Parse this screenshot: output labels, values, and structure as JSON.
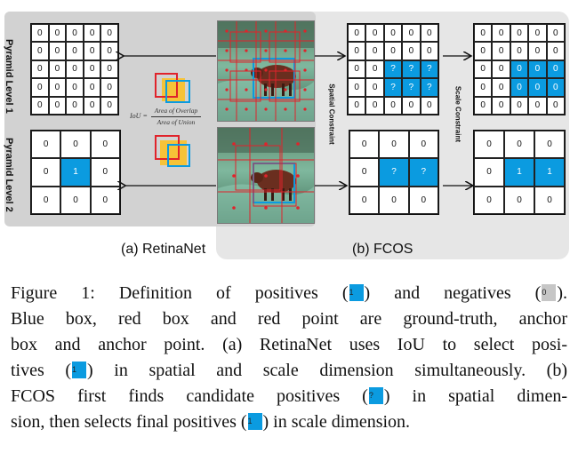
{
  "left_panel": {
    "pyramid_level_1_label": "Pyramid Level 1",
    "pyramid_level_2_label": "Pyramid Level 2",
    "subfigure_label": "(a) RetinaNet",
    "iou_prefix": "IoU =",
    "iou_numerator": "Area of Overlap",
    "iou_denominator": "Area of Union",
    "level1_grid": [
      [
        "0",
        "0",
        "0",
        "0",
        "0"
      ],
      [
        "0",
        "0",
        "0",
        "0",
        "0"
      ],
      [
        "0",
        "0",
        "0",
        "0",
        "0"
      ],
      [
        "0",
        "0",
        "0",
        "0",
        "0"
      ],
      [
        "0",
        "0",
        "0",
        "0",
        "0"
      ]
    ],
    "level2_grid": [
      [
        "0",
        "0",
        "0"
      ],
      [
        "0",
        "1",
        "0"
      ],
      [
        "0",
        "0",
        "0"
      ]
    ]
  },
  "right_panel": {
    "subfigure_label": "(b) FCOS",
    "spatial_constraint_label": "Spatial Constraint",
    "scale_constraint_label": "Scale Constraint",
    "spatial_level1_grid": [
      [
        "0",
        "0",
        "0",
        "0",
        "0"
      ],
      [
        "0",
        "0",
        "0",
        "0",
        "0"
      ],
      [
        "0",
        "0",
        "?",
        "?",
        "?"
      ],
      [
        "0",
        "0",
        "?",
        "?",
        "?"
      ],
      [
        "0",
        "0",
        "0",
        "0",
        "0"
      ]
    ],
    "spatial_level2_grid": [
      [
        "0",
        "0",
        "0"
      ],
      [
        "0",
        "?",
        "?"
      ],
      [
        "0",
        "0",
        "0"
      ]
    ],
    "scale_level1_grid": [
      [
        "0",
        "0",
        "0",
        "0",
        "0"
      ],
      [
        "0",
        "0",
        "0",
        "0",
        "0"
      ],
      [
        "0",
        "0",
        "0",
        "0",
        "0"
      ],
      [
        "0",
        "0",
        "0",
        "0",
        "0"
      ],
      [
        "0",
        "0",
        "0",
        "0",
        "0"
      ]
    ],
    "scale_level2_grid": [
      [
        "0",
        "0",
        "0"
      ],
      [
        "0",
        "1",
        "1"
      ],
      [
        "0",
        "0",
        "0"
      ]
    ]
  },
  "caption": {
    "line1_a": "Figure 1:  Definition of positives (",
    "line1_chip_pos": "1",
    "line1_b": ") and negatives (",
    "line1_chip_neg": "0",
    "line1_c": ").",
    "line2": "Blue box, red box and red point are ground-truth, anchor",
    "line3": "box and anchor point. (a) RetinaNet uses IoU to select posi-",
    "line4_a": "tives (",
    "line4_chip": "1",
    "line4_b": ") in spatial and scale dimension simultaneously. (b)",
    "line5_a": "FCOS first finds candidate positives (",
    "line5_chip": "?",
    "line5_b": ") in spatial dimen-",
    "line6_a": "sion, then selects final positives (",
    "line6_chip": "1",
    "line6_b": ") in scale dimension."
  },
  "colors": {
    "positive_blue": "#0b9be0",
    "negative_grey": "#c6c6c6",
    "panel_a_bg": "#d2d2d2",
    "panel_b_bg": "#e6e6e6",
    "anchor_red": "#e0232b"
  }
}
